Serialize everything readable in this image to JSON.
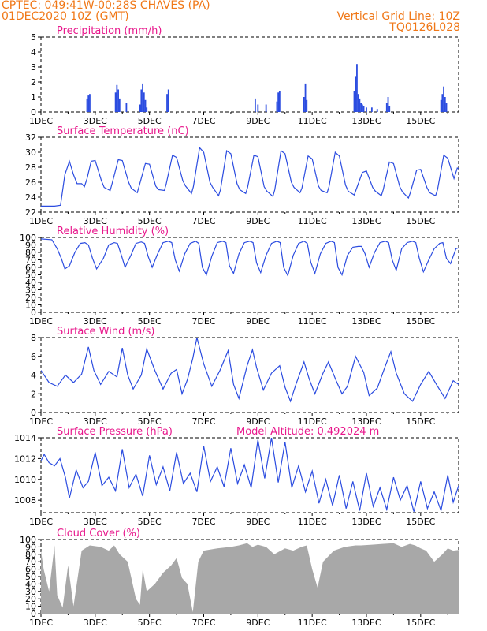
{
  "header": {
    "line1": "CPTEC:   049:41W-00:28S   CHAVES (PA)",
    "line2": "01DEC2020 10Z (GMT)",
    "grid_note": "Vertical Grid Line: 10Z",
    "code": "TQ0126L028"
  },
  "colors": {
    "series": "#2b4ce0",
    "cloud": "#a8a8a8",
    "title": "#e8188c",
    "header": "#f07818"
  },
  "x_ticks": [
    "1DEC",
    "3DEC",
    "5DEC",
    "7DEC",
    "9DEC",
    "11DEC",
    "13DEC",
    "15DEC"
  ],
  "x_range_days": [
    1,
    16.4
  ],
  "chart_data": [
    {
      "type": "bar",
      "title": "Precipitation (mm/h)",
      "ylim": [
        0,
        5
      ],
      "yticks": [
        "0",
        "1",
        "2",
        "3",
        "4",
        "5"
      ],
      "x": [
        2.7,
        2.75,
        2.8,
        3.75,
        3.8,
        3.85,
        3.9,
        4.15,
        4.65,
        4.7,
        4.75,
        4.8,
        4.85,
        4.9,
        5.65,
        5.7,
        8.9,
        9.0,
        9.3,
        9.7,
        9.75,
        9.8,
        10.7,
        10.75,
        10.8,
        12.55,
        12.6,
        12.65,
        12.7,
        12.75,
        12.8,
        12.85,
        12.9,
        13.0,
        13.2,
        13.4,
        13.75,
        13.8,
        13.85,
        15.75,
        15.8,
        15.85,
        15.9,
        15.95
      ],
      "values": [
        0.9,
        1.1,
        1.2,
        1.3,
        1.8,
        1.5,
        0.9,
        0.6,
        0.5,
        1.5,
        1.9,
        1.3,
        0.8,
        0.3,
        1.2,
        1.5,
        0.9,
        0.5,
        0.5,
        0.7,
        1.3,
        1.4,
        1.0,
        1.9,
        0.8,
        1.4,
        2.4,
        3.2,
        1.2,
        0.9,
        0.6,
        0.5,
        0.4,
        0.3,
        0.3,
        0.2,
        0.6,
        1.0,
        0.4,
        0.8,
        1.2,
        1.7,
        1.0,
        0.6
      ]
    },
    {
      "type": "line",
      "title": "Surface Temperature (nC)",
      "ylim": [
        22,
        32
      ],
      "yticks": [
        "22",
        "24",
        "26",
        "28",
        "30",
        "32"
      ],
      "x": [
        1.0,
        1.5,
        1.72,
        1.88,
        2.05,
        2.2,
        2.33,
        2.5,
        2.6,
        2.7,
        2.85,
        3.0,
        3.23,
        3.33,
        3.55,
        3.62,
        3.85,
        4.0,
        4.23,
        4.33,
        4.55,
        4.62,
        4.85,
        5.0,
        5.23,
        5.33,
        5.55,
        5.62,
        5.85,
        6.0,
        6.23,
        6.33,
        6.55,
        6.62,
        6.85,
        7.0,
        7.23,
        7.33,
        7.55,
        7.62,
        7.85,
        8.0,
        8.23,
        8.33,
        8.55,
        8.62,
        8.85,
        9.0,
        9.23,
        9.33,
        9.55,
        9.62,
        9.85,
        10.0,
        10.23,
        10.33,
        10.55,
        10.62,
        10.85,
        11.0,
        11.23,
        11.33,
        11.55,
        11.62,
        11.85,
        12.0,
        12.23,
        12.33,
        12.55,
        12.62,
        12.85,
        13.0,
        13.23,
        13.33,
        13.55,
        13.62,
        13.85,
        14.0,
        14.23,
        14.33,
        14.55,
        14.62,
        14.85,
        15.0,
        15.23,
        15.33,
        15.55,
        15.62,
        15.85,
        16.0,
        16.23,
        16.35,
        16.4
      ],
      "y": [
        22.8,
        22.8,
        22.9,
        27.0,
        28.8,
        27.0,
        25.8,
        25.8,
        25.4,
        26.5,
        28.8,
        28.9,
        26.2,
        25.3,
        24.9,
        25.8,
        29.0,
        28.9,
        26.0,
        25.2,
        24.6,
        25.5,
        28.5,
        28.4,
        25.5,
        25.0,
        24.9,
        25.8,
        29.6,
        29.3,
        26.2,
        25.5,
        24.5,
        25.4,
        30.6,
        30.0,
        26.0,
        25.3,
        24.2,
        25.0,
        30.2,
        29.8,
        25.8,
        25.0,
        24.5,
        25.3,
        29.6,
        29.4,
        25.4,
        24.8,
        24.1,
        25.0,
        30.2,
        29.8,
        26.0,
        25.3,
        24.6,
        25.2,
        29.5,
        29.1,
        25.5,
        24.9,
        24.6,
        25.4,
        30.0,
        29.5,
        25.6,
        24.8,
        24.3,
        25.0,
        27.3,
        27.5,
        25.3,
        24.8,
        24.2,
        25.0,
        28.7,
        28.5,
        25.4,
        24.7,
        23.9,
        24.6,
        27.6,
        27.7,
        25.3,
        24.6,
        24.2,
        25.0,
        29.6,
        29.2,
        26.5,
        27.9,
        27.8
      ]
    },
    {
      "type": "line",
      "title": "Relative Humidity (%)",
      "ylim": [
        0,
        100
      ],
      "yticks": [
        "0",
        "10",
        "20",
        "30",
        "40",
        "50",
        "60",
        "70",
        "80",
        "90",
        "100"
      ],
      "x": [
        1.0,
        1.4,
        1.6,
        1.75,
        1.88,
        2.05,
        2.25,
        2.45,
        2.62,
        2.75,
        2.9,
        3.05,
        3.3,
        3.5,
        3.7,
        3.82,
        3.95,
        4.1,
        4.3,
        4.5,
        4.7,
        4.82,
        4.95,
        5.1,
        5.3,
        5.5,
        5.7,
        5.82,
        5.95,
        6.1,
        6.3,
        6.5,
        6.7,
        6.82,
        6.95,
        7.1,
        7.3,
        7.5,
        7.7,
        7.82,
        7.95,
        8.1,
        8.3,
        8.5,
        8.7,
        8.82,
        8.95,
        9.1,
        9.3,
        9.5,
        9.7,
        9.82,
        9.95,
        10.1,
        10.3,
        10.5,
        10.7,
        10.82,
        10.95,
        11.1,
        11.3,
        11.5,
        11.7,
        11.82,
        11.95,
        12.1,
        12.3,
        12.5,
        12.7,
        12.82,
        12.95,
        13.1,
        13.3,
        13.5,
        13.7,
        13.82,
        13.95,
        14.1,
        14.3,
        14.5,
        14.7,
        14.82,
        14.95,
        15.1,
        15.3,
        15.5,
        15.7,
        15.82,
        15.95,
        16.1,
        16.3,
        16.4
      ],
      "y": [
        98,
        97,
        85,
        72,
        58,
        62,
        80,
        92,
        93,
        90,
        72,
        58,
        72,
        90,
        93,
        92,
        78,
        60,
        75,
        92,
        94,
        92,
        75,
        60,
        78,
        93,
        95,
        93,
        70,
        55,
        78,
        92,
        95,
        92,
        60,
        50,
        75,
        93,
        95,
        93,
        62,
        52,
        78,
        93,
        95,
        93,
        66,
        53,
        76,
        92,
        95,
        93,
        60,
        49,
        76,
        92,
        95,
        92,
        67,
        52,
        78,
        92,
        95,
        93,
        60,
        50,
        76,
        87,
        88,
        88,
        78,
        60,
        80,
        93,
        95,
        93,
        70,
        56,
        85,
        93,
        95,
        93,
        72,
        54,
        70,
        85,
        92,
        93,
        72,
        65,
        85,
        86
      ]
    },
    {
      "type": "line",
      "title": "Surface Wind (m/s)",
      "ylim": [
        0,
        8
      ],
      "yticks": [
        "0",
        "2",
        "4",
        "6",
        "8"
      ],
      "x": [
        1.0,
        1.3,
        1.6,
        1.9,
        2.2,
        2.5,
        2.75,
        2.95,
        3.2,
        3.5,
        3.8,
        4.0,
        4.2,
        4.4,
        4.7,
        4.9,
        5.2,
        5.5,
        5.8,
        6.0,
        6.2,
        6.4,
        6.6,
        6.75,
        7.0,
        7.3,
        7.6,
        7.9,
        8.1,
        8.3,
        8.6,
        8.8,
        8.95,
        9.2,
        9.5,
        9.8,
        10.0,
        10.2,
        10.4,
        10.7,
        10.9,
        11.1,
        11.4,
        11.6,
        11.9,
        12.1,
        12.3,
        12.6,
        12.9,
        13.1,
        13.4,
        13.7,
        13.9,
        14.1,
        14.4,
        14.7,
        15.0,
        15.3,
        15.6,
        15.9,
        16.2,
        16.4
      ],
      "y": [
        4.5,
        3.2,
        2.8,
        4.0,
        3.2,
        4.1,
        7.0,
        4.5,
        3.0,
        4.4,
        3.8,
        6.9,
        4.0,
        2.5,
        4.0,
        6.8,
        4.5,
        2.5,
        4.2,
        4.6,
        2.0,
        3.5,
        5.8,
        8.0,
        5.2,
        2.8,
        4.5,
        6.6,
        3.0,
        1.5,
        5.0,
        6.7,
        4.8,
        2.4,
        4.2,
        5.0,
        2.7,
        1.2,
        3.0,
        5.4,
        3.5,
        2.0,
        4.2,
        5.4,
        3.3,
        2.0,
        2.8,
        6.0,
        4.3,
        1.8,
        2.6,
        5.0,
        6.5,
        4.2,
        2.0,
        1.2,
        3.0,
        4.4,
        2.9,
        1.5,
        3.4,
        3.0
      ]
    },
    {
      "type": "line",
      "title": "Surface Pressure (hPa)",
      "annotation": "Model Altitude: 0.492024 m",
      "ylim": [
        1006.8,
        1014
      ],
      "yticks": [
        "1008",
        "1010",
        "1012",
        "1014"
      ],
      "x": [
        1.0,
        1.12,
        1.3,
        1.5,
        1.7,
        1.9,
        2.05,
        2.3,
        2.55,
        2.75,
        3.0,
        3.25,
        3.5,
        3.75,
        4.0,
        4.25,
        4.5,
        4.75,
        5.0,
        5.25,
        5.5,
        5.75,
        6.0,
        6.25,
        6.5,
        6.75,
        7.0,
        7.25,
        7.5,
        7.75,
        8.0,
        8.25,
        8.5,
        8.75,
        9.0,
        9.25,
        9.5,
        9.75,
        10.0,
        10.25,
        10.5,
        10.75,
        11.0,
        11.25,
        11.5,
        11.75,
        12.0,
        12.25,
        12.5,
        12.75,
        13.0,
        13.25,
        13.5,
        13.75,
        14.0,
        14.25,
        14.5,
        14.75,
        15.0,
        15.25,
        15.5,
        15.75,
        16.0,
        16.2,
        16.4
      ],
      "y": [
        1011.8,
        1012.4,
        1011.6,
        1011.3,
        1012.0,
        1010.2,
        1008.2,
        1010.9,
        1009.2,
        1009.8,
        1012.6,
        1009.4,
        1010.2,
        1008.9,
        1012.9,
        1009.2,
        1010.5,
        1008.4,
        1012.3,
        1009.5,
        1011.2,
        1008.9,
        1012.6,
        1009.6,
        1010.6,
        1008.8,
        1013.2,
        1009.8,
        1011.2,
        1009.3,
        1013.0,
        1009.6,
        1011.4,
        1009.2,
        1013.8,
        1010.1,
        1014.0,
        1009.7,
        1013.6,
        1009.2,
        1011.3,
        1008.8,
        1010.8,
        1007.7,
        1010.0,
        1007.5,
        1010.4,
        1007.2,
        1009.8,
        1007.0,
        1010.6,
        1007.4,
        1009.2,
        1007.1,
        1010.2,
        1008.0,
        1009.4,
        1006.9,
        1009.8,
        1007.2,
        1008.8,
        1007.0,
        1010.4,
        1007.8,
        1009.4
      ]
    },
    {
      "type": "area",
      "title": "Cloud Cover (%)",
      "ylim": [
        0,
        100
      ],
      "yticks": [
        "0",
        "10",
        "20",
        "30",
        "40",
        "50",
        "60",
        "70",
        "80",
        "90",
        "100"
      ],
      "x": [
        1.0,
        1.1,
        1.3,
        1.5,
        1.6,
        1.8,
        2.0,
        2.2,
        2.5,
        2.8,
        3.2,
        3.5,
        3.7,
        3.9,
        4.2,
        4.5,
        4.65,
        4.75,
        4.9,
        5.2,
        5.5,
        5.8,
        6.0,
        6.2,
        6.4,
        6.6,
        6.8,
        7.0,
        7.5,
        8.0,
        8.3,
        8.6,
        8.8,
        9.0,
        9.3,
        9.6,
        10.0,
        10.3,
        10.6,
        10.8,
        11.0,
        11.2,
        11.4,
        11.8,
        12.2,
        12.6,
        12.8,
        13.2,
        13.6,
        14.0,
        14.3,
        14.6,
        14.8,
        15.0,
        15.2,
        15.5,
        15.8,
        16.0,
        16.2,
        16.4
      ],
      "y": [
        85,
        60,
        30,
        92,
        25,
        8,
        65,
        10,
        85,
        92,
        90,
        85,
        92,
        80,
        70,
        20,
        12,
        60,
        30,
        40,
        55,
        65,
        75,
        48,
        40,
        2,
        70,
        85,
        88,
        90,
        92,
        95,
        90,
        93,
        90,
        80,
        88,
        85,
        90,
        92,
        60,
        35,
        70,
        85,
        90,
        92,
        92,
        93,
        94,
        95,
        90,
        94,
        92,
        88,
        85,
        70,
        80,
        88,
        85,
        86
      ]
    }
  ]
}
